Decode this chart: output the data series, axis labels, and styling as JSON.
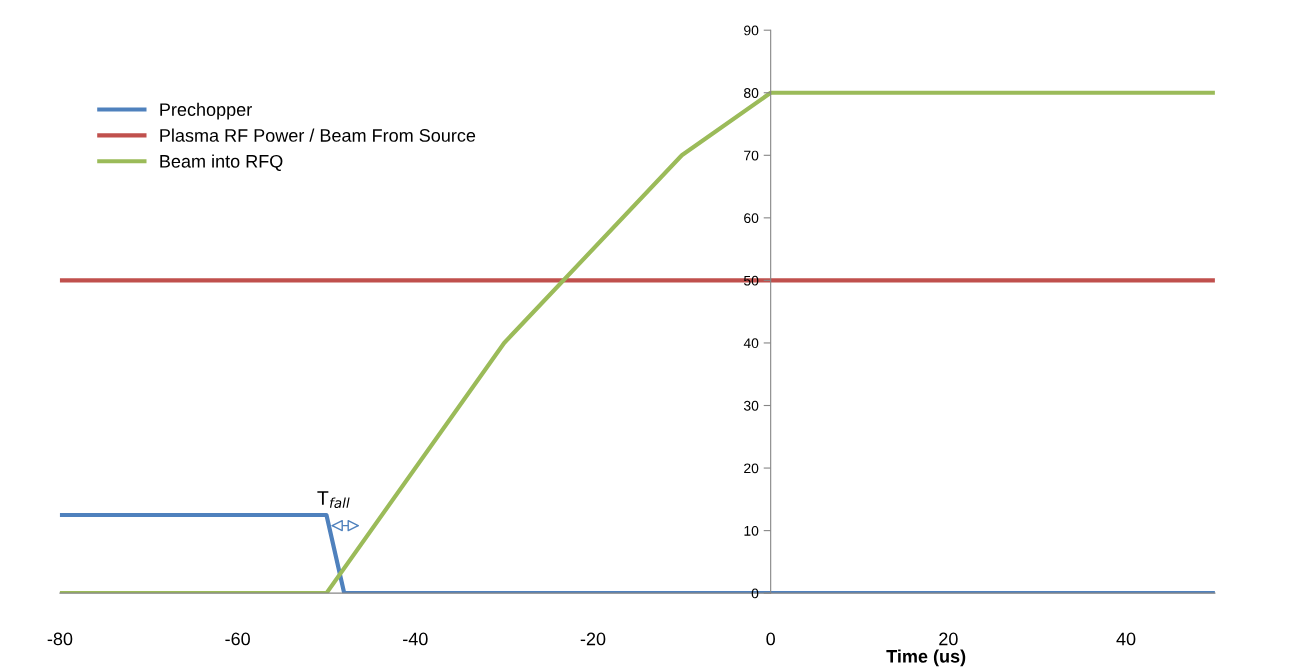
{
  "chart_data": {
    "type": "line",
    "xlabel": "Time (us)",
    "xlim": [
      -80,
      50
    ],
    "xticks": [
      -80,
      -60,
      -40,
      -20,
      0,
      20,
      40
    ],
    "ylim": [
      0,
      90
    ],
    "yticks": [
      0,
      10,
      20,
      30,
      40,
      50,
      60,
      70,
      80,
      90
    ],
    "series": [
      {
        "name": "Prechopper",
        "color": "#4f81bd",
        "x": [
          -80,
          -50,
          -48,
          50
        ],
        "values": [
          12.5,
          12.5,
          0,
          0
        ]
      },
      {
        "name": "Plasma RF Power / Beam From Source",
        "color": "#c0504d",
        "x": [
          -80,
          50
        ],
        "values": [
          50,
          50
        ]
      },
      {
        "name": "Beam into RFQ",
        "color": "#9bbb59",
        "x": [
          -80,
          -50,
          -30,
          -10,
          0,
          50
        ],
        "values": [
          0,
          0,
          40,
          70,
          80,
          80
        ]
      }
    ],
    "annotations": [
      "T$_{fall}$"
    ],
    "legend": "top left",
    "grid": false,
    "marker": "none",
    "line_style": "solid"
  }
}
